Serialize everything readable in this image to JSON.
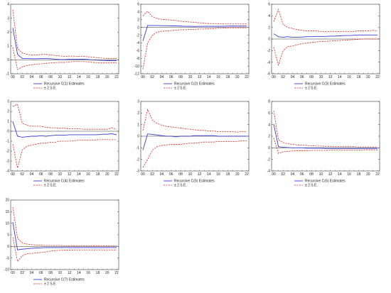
{
  "colors": {
    "estimate": "#3a3ad8",
    "band": "#e0282a",
    "axis": "#333333",
    "zero": "#000000"
  },
  "chart_data": [
    {
      "type": "line",
      "id": "c1",
      "x": [
        "00",
        "01",
        "02",
        "03",
        "04",
        "05",
        "06",
        "07",
        "08",
        "09",
        "10",
        "11",
        "12",
        "13",
        "14",
        "15",
        "16",
        "17",
        "18",
        "19",
        "20",
        "21",
        "22"
      ],
      "xticks": [
        "00",
        "02",
        "04",
        "06",
        "08",
        "10",
        "12",
        "14",
        "16",
        "18",
        "20",
        "22"
      ],
      "ylim": [
        -1,
        4
      ],
      "yticks": [
        -1,
        0,
        1,
        2,
        3,
        4
      ],
      "legend": [
        "Recursive C(1) Estimates",
        "± 2 S.E."
      ],
      "series": [
        {
          "role": "estimate",
          "values": [
            2.3,
            0.4,
            0.1,
            0.1,
            0.08,
            0.08,
            0.1,
            0.1,
            0.08,
            0.05,
            0.03,
            0.02,
            0.05,
            0.05,
            0.04,
            0.05,
            0.03,
            0.0,
            -0.02,
            -0.04,
            -0.05,
            -0.05,
            -0.05
          ]
        },
        {
          "role": "upper",
          "values": [
            3.6,
            0.8,
            0.5,
            0.4,
            0.35,
            0.35,
            0.38,
            0.4,
            0.35,
            0.32,
            0.28,
            0.25,
            0.27,
            0.27,
            0.25,
            0.25,
            0.22,
            0.2,
            0.15,
            0.12,
            0.1,
            0.1,
            0.1
          ]
        },
        {
          "role": "lower",
          "values": [
            0.9,
            -0.7,
            -0.5,
            -0.4,
            -0.35,
            -0.3,
            -0.28,
            -0.25,
            -0.22,
            -0.2,
            -0.18,
            -0.18,
            -0.15,
            -0.12,
            -0.12,
            -0.12,
            -0.15,
            -0.18,
            -0.2,
            -0.22,
            -0.22,
            -0.2,
            -0.2
          ]
        }
      ]
    },
    {
      "type": "line",
      "id": "c2",
      "x": [
        "00",
        "01",
        "02",
        "03",
        "04",
        "05",
        "06",
        "07",
        "08",
        "09",
        "10",
        "11",
        "12",
        "13",
        "14",
        "15",
        "16",
        "17",
        "18",
        "19",
        "20",
        "21",
        "22"
      ],
      "xticks": [
        "00",
        "02",
        "04",
        "06",
        "08",
        "10",
        "12",
        "14",
        "16",
        "18",
        "20",
        "22"
      ],
      "ylim": [
        -12,
        6
      ],
      "yticks": [
        -12,
        -10,
        -8,
        -6,
        -4,
        -2,
        0,
        2,
        4,
        6
      ],
      "legend": [
        "Recursive C(2) Estimates",
        "± 2 S.E."
      ],
      "series": [
        {
          "role": "estimate",
          "values": [
            -3.5,
            0.5,
            0.5,
            0.5,
            0.45,
            0.45,
            0.4,
            0.4,
            0.35,
            0.3,
            0.3,
            0.25,
            0.3,
            0.3,
            0.3,
            0.3,
            0.3,
            0.3,
            0.35,
            0.35,
            0.35,
            0.35,
            0.35
          ]
        },
        {
          "role": "upper",
          "values": [
            3.0,
            4.2,
            2.8,
            2.3,
            2.1,
            2.0,
            1.9,
            1.8,
            1.6,
            1.5,
            1.4,
            1.3,
            1.2,
            1.1,
            1.0,
            1.0,
            1.0,
            0.9,
            0.9,
            0.9,
            0.9,
            0.9,
            0.9
          ]
        },
        {
          "role": "lower",
          "values": [
            -10.8,
            -4.0,
            -2.0,
            -1.2,
            -1.0,
            -0.9,
            -0.8,
            -0.7,
            -0.6,
            -0.6,
            -0.5,
            -0.5,
            -0.4,
            -0.4,
            -0.3,
            -0.3,
            -0.2,
            -0.2,
            -0.1,
            -0.1,
            -0.1,
            -0.1,
            -0.1
          ]
        }
      ]
    },
    {
      "type": "line",
      "id": "c3",
      "x": [
        "00",
        "01",
        "02",
        "03",
        "04",
        "05",
        "06",
        "07",
        "08",
        "09",
        "10",
        "11",
        "12",
        "13",
        "14",
        "15",
        "16",
        "17",
        "18",
        "19",
        "20",
        "21",
        "22"
      ],
      "xticks": [
        "00",
        "02",
        "04",
        "06",
        "08",
        "10",
        "12",
        "14",
        "16",
        "18",
        "20",
        "22"
      ],
      "ylim": [
        -6,
        6
      ],
      "yticks": [
        -6,
        -4,
        -2,
        0,
        2,
        4,
        6
      ],
      "legend": [
        "Recursive C(3) Estimates",
        "± 2 S.E."
      ],
      "series": [
        {
          "role": "estimate",
          "values": [
            0.9,
            0.4,
            0.3,
            0.4,
            0.3,
            0.3,
            0.35,
            0.4,
            0.4,
            0.45,
            0.45,
            0.45,
            0.5,
            0.5,
            0.55,
            0.6,
            0.6,
            0.65,
            0.7,
            0.7,
            0.7,
            0.7,
            0.7
          ]
        },
        {
          "role": "upper",
          "values": [
            3.0,
            5.1,
            2.5,
            2.0,
            1.8,
            1.6,
            1.5,
            1.4,
            1.4,
            1.4,
            1.3,
            1.3,
            1.3,
            1.3,
            1.3,
            1.3,
            1.3,
            1.3,
            1.4,
            1.4,
            1.4,
            1.5,
            1.4
          ]
        },
        {
          "role": "lower",
          "values": [
            -1.4,
            -4.5,
            -2.0,
            -1.3,
            -1.2,
            -1.0,
            -0.8,
            -0.7,
            -0.6,
            -0.5,
            -0.45,
            -0.4,
            -0.35,
            -0.3,
            -0.25,
            -0.2,
            -0.15,
            -0.1,
            -0.05,
            0.0,
            0.0,
            0.0,
            0.0
          ]
        }
      ]
    },
    {
      "type": "line",
      "id": "c4",
      "x": [
        "00",
        "01",
        "02",
        "03",
        "04",
        "05",
        "06",
        "07",
        "08",
        "09",
        "10",
        "11",
        "12",
        "13",
        "14",
        "15",
        "16",
        "17",
        "18",
        "19",
        "20",
        "21",
        "22"
      ],
      "xticks": [
        "00",
        "02",
        "04",
        "06",
        "08",
        "10",
        "12",
        "14",
        "16",
        "18",
        "20",
        "22"
      ],
      "ylim": [
        -4,
        3
      ],
      "yticks": [
        -4,
        -3,
        -2,
        -1,
        0,
        1,
        2,
        3
      ],
      "legend": [
        "Recursive C(4) Estimates",
        "± 2 S.E."
      ],
      "series": [
        {
          "role": "estimate",
          "values": [
            1.0,
            -0.5,
            -0.6,
            -0.55,
            -0.5,
            -0.5,
            -0.45,
            -0.5,
            -0.45,
            -0.4,
            -0.4,
            -0.4,
            -0.35,
            -0.35,
            -0.35,
            -0.35,
            -0.35,
            -0.35,
            -0.35,
            -0.3,
            -0.3,
            -0.25,
            -0.35
          ]
        },
        {
          "role": "upper",
          "values": [
            2.5,
            2.7,
            0.8,
            0.6,
            0.5,
            0.5,
            0.5,
            0.4,
            0.35,
            0.35,
            0.3,
            0.3,
            0.25,
            0.25,
            0.25,
            0.2,
            0.2,
            0.2,
            0.2,
            0.2,
            0.2,
            0.35,
            0.2
          ]
        },
        {
          "role": "lower",
          "values": [
            -1.3,
            -3.7,
            -1.9,
            -1.5,
            -1.4,
            -1.3,
            -1.2,
            -1.2,
            -1.1,
            -1.1,
            -1.0,
            -1.0,
            -1.0,
            -0.95,
            -0.9,
            -0.9,
            -0.9,
            -0.9,
            -0.85,
            -0.85,
            -0.85,
            -0.85,
            -0.85
          ]
        }
      ]
    },
    {
      "type": "line",
      "id": "c5",
      "x": [
        "00",
        "01",
        "02",
        "03",
        "04",
        "05",
        "06",
        "07",
        "08",
        "09",
        "10",
        "11",
        "12",
        "13",
        "14",
        "15",
        "16",
        "17",
        "18",
        "19",
        "20",
        "21",
        "22"
      ],
      "xticks": [
        "00",
        "02",
        "04",
        "06",
        "08",
        "10",
        "12",
        "14",
        "16",
        "18",
        "20",
        "22"
      ],
      "ylim": [
        -3,
        3
      ],
      "yticks": [
        -3,
        -2,
        -1,
        0,
        1,
        2,
        3
      ],
      "legend": [
        "Recursive C(5) Estimates",
        "± 2 S.E."
      ],
      "series": [
        {
          "role": "estimate",
          "values": [
            -1.2,
            0.2,
            0.15,
            0.1,
            0.05,
            0.0,
            0.0,
            -0.05,
            0.0,
            0.0,
            0.0,
            0.05,
            0.05,
            0.05,
            0.05,
            0.05,
            0.0,
            0.0,
            0.0,
            0.0,
            0.0,
            0.0,
            0.0
          ]
        },
        {
          "role": "upper",
          "values": [
            0.5,
            2.3,
            1.4,
            1.1,
            0.95,
            0.85,
            0.8,
            0.75,
            0.7,
            0.65,
            0.6,
            0.55,
            0.5,
            0.5,
            0.45,
            0.45,
            0.4,
            0.4,
            0.4,
            0.4,
            0.35,
            0.4,
            0.4
          ]
        },
        {
          "role": "lower",
          "values": [
            -2.7,
            -2.0,
            -1.2,
            -0.9,
            -0.8,
            -0.75,
            -0.7,
            -0.7,
            -0.7,
            -0.65,
            -0.6,
            -0.6,
            -0.55,
            -0.5,
            -0.5,
            -0.5,
            -0.45,
            -0.45,
            -0.45,
            -0.45,
            -0.45,
            -0.4,
            -0.4
          ]
        }
      ]
    },
    {
      "type": "line",
      "id": "c6",
      "x": [
        "00",
        "01",
        "02",
        "03",
        "04",
        "05",
        "06",
        "07",
        "08",
        "09",
        "10",
        "11",
        "12",
        "13",
        "14",
        "15",
        "16",
        "17",
        "18",
        "19",
        "20",
        "21",
        "22"
      ],
      "xticks": [
        "00",
        "02",
        "04",
        "06",
        "08",
        "10",
        "12",
        "14",
        "16",
        "18",
        "20",
        "22"
      ],
      "ylim": [
        -4,
        8
      ],
      "yticks": [
        -4,
        -2,
        0,
        2,
        4,
        6,
        8
      ],
      "legend": [
        "Recursive C(6) Estimates",
        "± 2 S.E."
      ],
      "series": [
        {
          "role": "estimate",
          "values": [
            4.1,
            0.2,
            0.1,
            0.05,
            0.0,
            0.0,
            0.0,
            -0.05,
            -0.05,
            -0.05,
            -0.05,
            -0.1,
            -0.1,
            -0.1,
            -0.1,
            -0.1,
            -0.1,
            -0.1,
            -0.1,
            -0.1,
            -0.1,
            -0.1,
            -0.1
          ]
        },
        {
          "role": "upper",
          "values": [
            6.4,
            1.4,
            0.9,
            0.7,
            0.6,
            0.5,
            0.45,
            0.4,
            0.35,
            0.3,
            0.3,
            0.25,
            0.25,
            0.2,
            0.2,
            0.2,
            0.2,
            0.2,
            0.15,
            0.15,
            0.15,
            0.15,
            0.15
          ]
        },
        {
          "role": "lower",
          "values": [
            1.7,
            -1.0,
            -0.7,
            -0.6,
            -0.55,
            -0.5,
            -0.5,
            -0.5,
            -0.45,
            -0.45,
            -0.45,
            -0.45,
            -0.4,
            -0.4,
            -0.4,
            -0.4,
            -0.4,
            -0.4,
            -0.4,
            -0.35,
            -0.35,
            -0.35,
            -0.35
          ]
        }
      ]
    },
    {
      "type": "line",
      "id": "c7",
      "x": [
        "00",
        "01",
        "02",
        "03",
        "04",
        "05",
        "06",
        "07",
        "08",
        "09",
        "10",
        "11",
        "12",
        "13",
        "14",
        "15",
        "16",
        "17",
        "18",
        "19",
        "20",
        "21",
        "22"
      ],
      "xticks": [
        "00",
        "02",
        "04",
        "06",
        "08",
        "10",
        "12",
        "14",
        "16",
        "18",
        "20",
        "22"
      ],
      "ylim": [
        -10,
        20
      ],
      "yticks": [
        -10,
        -5,
        0,
        5,
        10,
        15,
        20
      ],
      "legend": [
        "Recursive C(7) Estimates",
        "± 2 S.E."
      ],
      "series": [
        {
          "role": "estimate",
          "values": [
            10.5,
            -1.5,
            -1.2,
            -1.0,
            -0.8,
            -0.7,
            -0.6,
            -0.5,
            -0.5,
            -0.5,
            -0.5,
            -0.5,
            -0.5,
            -0.5,
            -0.5,
            -0.5,
            -0.5,
            -0.5,
            -0.5,
            -0.5,
            -0.5,
            -0.5,
            -0.5
          ]
        },
        {
          "role": "upper",
          "values": [
            17.0,
            3.5,
            1.5,
            1.0,
            0.8,
            0.6,
            0.5,
            0.4,
            0.4,
            0.4,
            0.4,
            0.3,
            0.3,
            0.3,
            0.3,
            0.3,
            0.3,
            0.3,
            0.3,
            0.3,
            0.3,
            0.3,
            0.3
          ]
        },
        {
          "role": "lower",
          "values": [
            4.0,
            -6.5,
            -4.0,
            -3.2,
            -3.0,
            -2.8,
            -2.6,
            -2.4,
            -2.0,
            -1.8,
            -1.7,
            -1.6,
            -1.6,
            -1.5,
            -1.5,
            -1.5,
            -1.5,
            -1.5,
            -1.5,
            -1.5,
            -1.5,
            -1.5,
            -1.5
          ]
        }
      ]
    }
  ]
}
